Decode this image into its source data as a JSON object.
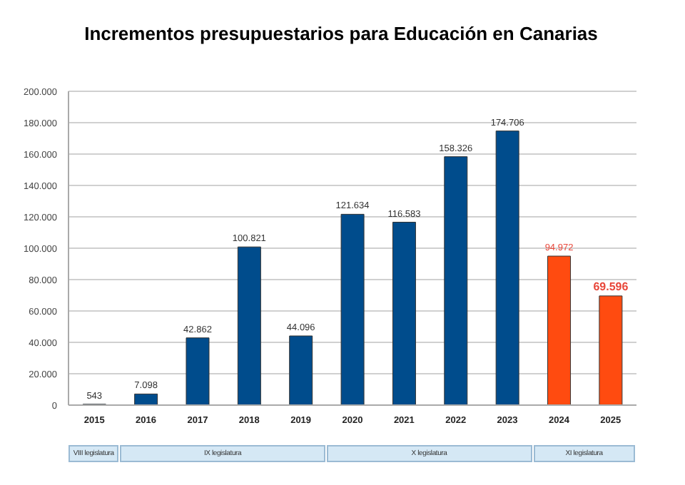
{
  "chart_data": {
    "type": "bar",
    "title": "Incrementos presupuestarios para Educación en Canarias",
    "categories": [
      "2015",
      "2016",
      "2017",
      "2018",
      "2019",
      "2020",
      "2021",
      "2022",
      "2023",
      "2024",
      "2025"
    ],
    "values": [
      543,
      7098,
      42862,
      100821,
      44096,
      121634,
      116583,
      158326,
      174706,
      94972,
      69596
    ],
    "colors": [
      "#004c8c",
      "#004c8c",
      "#004c8c",
      "#004c8c",
      "#004c8c",
      "#004c8c",
      "#004c8c",
      "#004c8c",
      "#004c8c",
      "#ff4b10",
      "#ff4b10"
    ],
    "value_labels": [
      "543",
      "7.098",
      "42.862",
      "100.821",
      "44.096",
      "121.634",
      "116.583",
      "158.326",
      "174.706",
      "94.972",
      "69.596"
    ],
    "ylim": [
      0,
      200000
    ],
    "yticks": [
      {
        "value": 0,
        "label": "0"
      },
      {
        "value": 20000,
        "label": "20.000"
      },
      {
        "value": 40000,
        "label": "40.000"
      },
      {
        "value": 60000,
        "label": "60.000"
      },
      {
        "value": 80000,
        "label": "80.000"
      },
      {
        "value": 100000,
        "label": "100.000"
      },
      {
        "value": 120000,
        "label": "120.000"
      },
      {
        "value": 140000,
        "label": "140.000"
      },
      {
        "value": 160000,
        "label": "160.000"
      },
      {
        "value": 180000,
        "label": "180.000"
      },
      {
        "value": 200000,
        "label": "200.000"
      }
    ],
    "grid": "y",
    "annotations": [
      "VIII legislatura",
      "IX legislatura",
      "X legislatura",
      "XI legislatura"
    ]
  }
}
